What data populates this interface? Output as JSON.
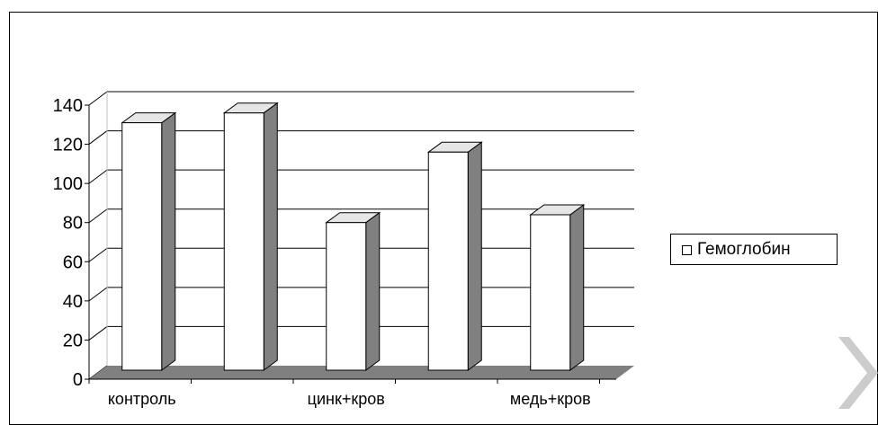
{
  "chart_data": {
    "type": "bar",
    "categories": [
      "контроль",
      "",
      "цинк+кров",
      "",
      "медь+кров"
    ],
    "series": [
      {
        "name": "Гемоглобин",
        "values": [
          131,
          136,
          80,
          116,
          84
        ]
      }
    ],
    "ylim": [
      0,
      140
    ],
    "yticks": [
      "0",
      "20",
      "40",
      "60",
      "80",
      "100",
      "120",
      "140"
    ],
    "grid": true,
    "legend_position": "right",
    "three_d": true,
    "colors": {
      "bar_face": "#ffffff",
      "bar_side": "#808080",
      "floor": "#808080",
      "grid": "#000000"
    }
  },
  "legend": {
    "label": "Гемоглобин"
  }
}
